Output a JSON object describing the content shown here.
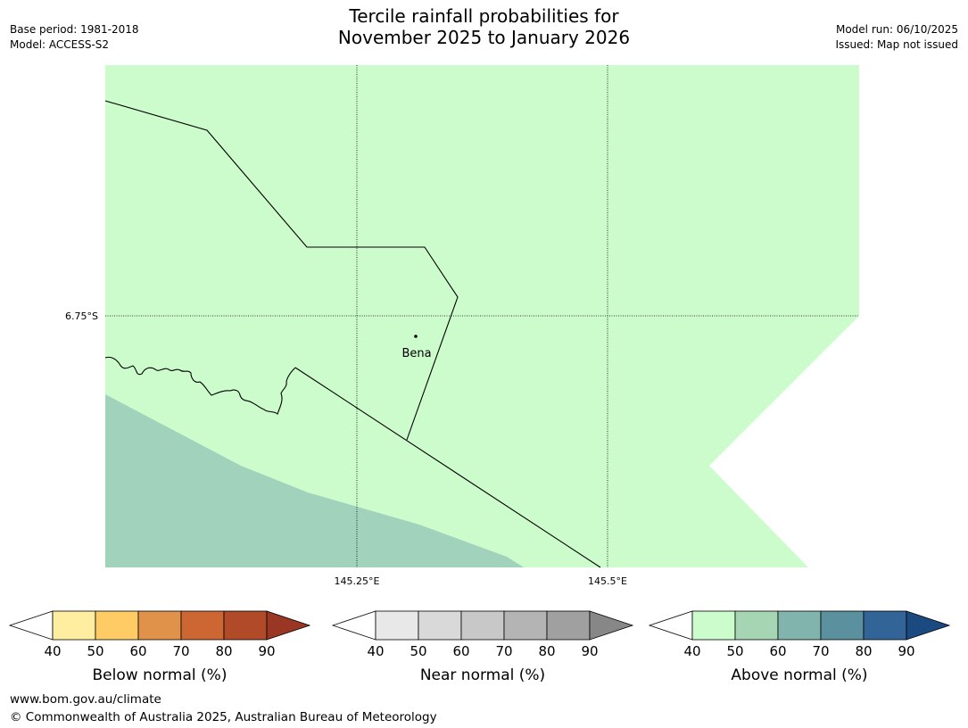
{
  "header": {
    "title_line1": "Tercile rainfall probabilities for",
    "title_line2": "November 2025 to January 2026",
    "base_period": "Base period: 1981-2018",
    "model": "Model: ACCESS-S2",
    "model_run": "Model run: 06/10/2025",
    "issued": "Issued: Map not issued"
  },
  "map": {
    "lat_label": "6.75°S",
    "lon_labels": [
      "145.25°E",
      "145.5°E"
    ],
    "place": {
      "name": "Bena"
    },
    "region_colors": {
      "main": "#ccfccb",
      "secondary": "#a0d2bc"
    }
  },
  "legends": [
    {
      "label": "Below normal (%)",
      "ticks": [
        "40",
        "50",
        "60",
        "70",
        "80",
        "90"
      ],
      "colors": [
        "#ffffff",
        "#ffeda0",
        "#fecb65",
        "#e0924b",
        "#cc6633",
        "#b04a28",
        "#9a3624"
      ]
    },
    {
      "label": "Near normal (%)",
      "ticks": [
        "40",
        "50",
        "60",
        "70",
        "80",
        "90"
      ],
      "colors": [
        "#ffffff",
        "#e8e8e8",
        "#d9d9d9",
        "#c8c8c8",
        "#b4b4b4",
        "#a0a0a0",
        "#878787"
      ]
    },
    {
      "label": "Above normal (%)",
      "ticks": [
        "40",
        "50",
        "60",
        "70",
        "80",
        "90"
      ],
      "colors": [
        "#ffffff",
        "#ccfccb",
        "#a6d5b4",
        "#80b4ad",
        "#5b909e",
        "#326497",
        "#1a4a80"
      ]
    }
  ],
  "footer": {
    "url": "www.bom.gov.au/climate",
    "copyright": "© Commonwealth of Australia 2025, Australian Bureau of Meteorology"
  }
}
